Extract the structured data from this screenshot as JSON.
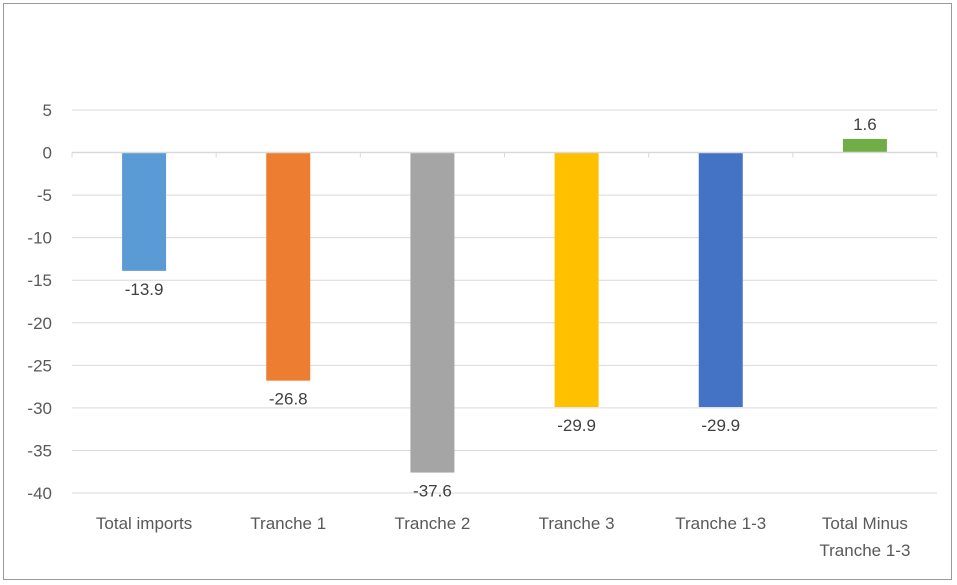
{
  "chart_data": {
    "type": "bar",
    "title": "",
    "xlabel": "",
    "ylabel": "",
    "ylim": [
      -40,
      5
    ],
    "ytick_step": 5,
    "yticks": [
      "5",
      "0",
      "-5",
      "-10",
      "-15",
      "-20",
      "-25",
      "-30",
      "-35",
      "-40"
    ],
    "grid": true,
    "legend": "none",
    "categories": [
      [
        "Total imports"
      ],
      [
        "Tranche 1"
      ],
      [
        "Tranche 2"
      ],
      [
        "Tranche 3"
      ],
      [
        "Tranche 1-3"
      ],
      [
        "Total Minus",
        "Tranche 1-3"
      ]
    ],
    "values": [
      -13.9,
      -26.8,
      -37.6,
      -29.9,
      -29.9,
      1.6
    ],
    "data_labels": [
      "-13.9",
      "-26.8",
      "-37.6",
      "-29.9",
      "-29.9",
      "1.6"
    ],
    "colors": [
      "#5b9bd5",
      "#ed7d31",
      "#a5a5a5",
      "#ffc000",
      "#4472c4",
      "#70ad47"
    ]
  }
}
